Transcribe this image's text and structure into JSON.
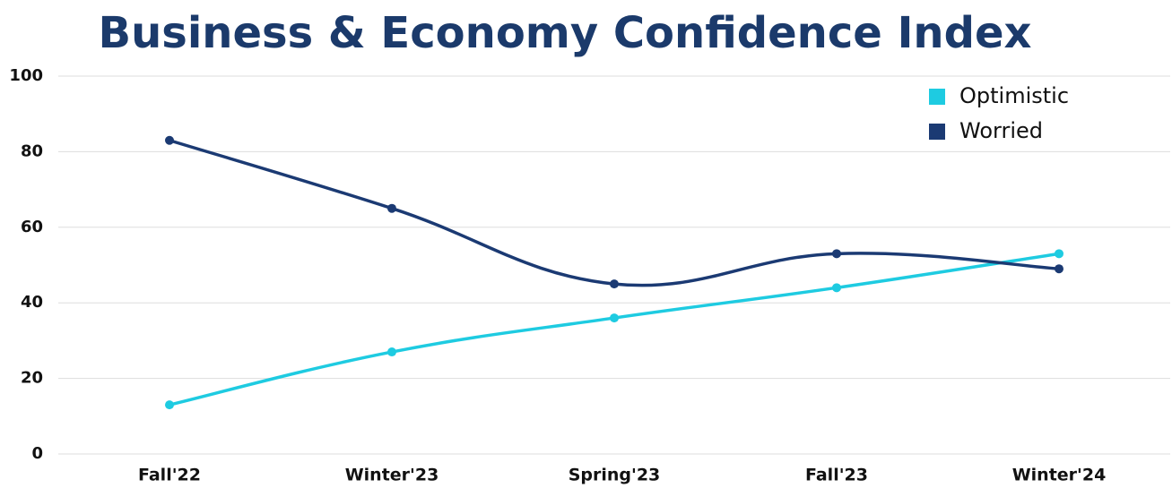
{
  "chart_data": {
    "type": "line",
    "title": "Business & Economy Confidence Index",
    "categories": [
      "Fall'22",
      "Winter'23",
      "Spring'23",
      "Fall'23",
      "Winter'24"
    ],
    "series": [
      {
        "name": "Optimistic",
        "color": "#1ecbe1",
        "values": [
          13,
          27,
          36,
          44,
          53
        ]
      },
      {
        "name": "Worried",
        "color": "#1b3a73",
        "values": [
          83,
          65,
          45,
          53,
          49
        ]
      }
    ],
    "ylim": [
      0,
      100
    ],
    "yticks": [
      0,
      20,
      40,
      60,
      80,
      100
    ],
    "grid": true,
    "legend": "top-right"
  }
}
